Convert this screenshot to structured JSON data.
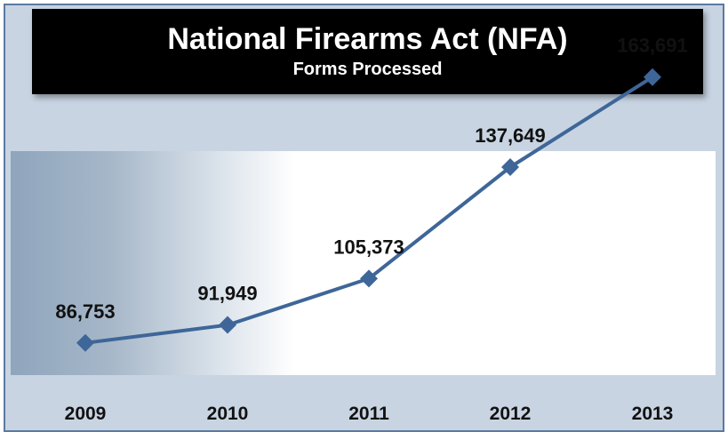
{
  "chart_data": {
    "type": "line",
    "title": "National Firearms Act (NFA)",
    "subtitle": "Forms Processed",
    "categories": [
      "2009",
      "2010",
      "2011",
      "2012",
      "2013"
    ],
    "series": [
      {
        "values": [
          86753,
          91949,
          105373,
          137649,
          163691
        ]
      }
    ],
    "data_labels": [
      "86,753",
      "91,949",
      "105,373",
      "137,649",
      "163,691"
    ],
    "ylim": [
      80000,
      168000
    ],
    "grid": false,
    "legend": "none",
    "colors": {
      "line": "#3e6698",
      "marker": "#3e6698",
      "frame": "#5b7aa0",
      "panel": "#c8d4e2"
    }
  }
}
